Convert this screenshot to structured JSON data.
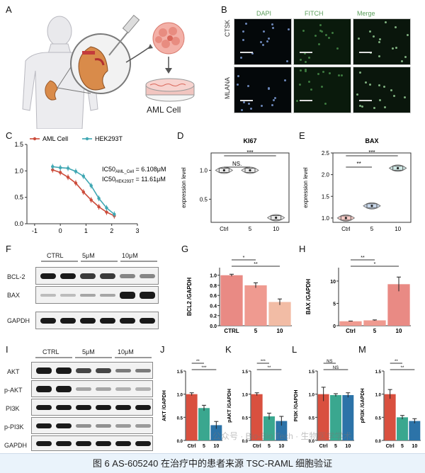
{
  "panels": {
    "A": "A",
    "B": "B",
    "C": "C",
    "D": "D",
    "E": "E",
    "F": "F",
    "G": "G",
    "H": "H",
    "I": "I",
    "J": "J",
    "K": "K",
    "L": "L",
    "M": "M"
  },
  "panelA": {
    "cell_label": "AML Cell"
  },
  "panelB": {
    "col_headers": [
      "DAPI",
      "FITCH",
      "Merge"
    ],
    "row_labels": [
      "CTSK",
      "MLANA"
    ]
  },
  "panelC": {
    "legend": [
      "AML Cell",
      "HEK293T"
    ],
    "ic50_aml_prefix": "IC50",
    "ic50_aml_sub": "AML_Cell",
    "ic50_aml_value": "= 6.108μM",
    "ic50_hek_prefix": "IC50",
    "ic50_hek_sub": "HEK293T",
    "ic50_hek_value": "= 11.61μM",
    "colors": {
      "aml": "#cc4c3b",
      "hek": "#3fa7b3"
    }
  },
  "panelF": {
    "conditions": [
      "CTRL",
      "5μM",
      "10μM"
    ],
    "rows": [
      "BCL-2",
      "BAX",
      "GAPDH"
    ]
  },
  "panelI": {
    "conditions": [
      "CTRL",
      "5μM",
      "10μM"
    ],
    "rows": [
      "AKT",
      "p-AKT",
      "PI3K",
      "p-PI3K",
      "GAPDH"
    ]
  },
  "caption": "图 6 AS-605240 在治疗中的患者来源 TSC-RAML 细胞验证",
  "watermark": "公众号 · Bio-Bio Tech · 生物医学学术",
  "chart_data": [
    {
      "id": "C",
      "type": "line",
      "xlabel": "",
      "ylabel": "",
      "xticks": [
        "-1",
        "0",
        "1",
        "2",
        "3"
      ],
      "yticks": [
        "0.0",
        "0.5",
        "1.0",
        "1.5"
      ],
      "xlim": [
        -1.3,
        3
      ],
      "ylim": [
        0,
        1.5
      ],
      "series": [
        {
          "name": "AML Cell",
          "x": [
            -0.3,
            0,
            0.3,
            0.6,
            0.9,
            1.2,
            1.5,
            1.8,
            2.1
          ],
          "y": [
            1.02,
            0.97,
            0.88,
            0.77,
            0.6,
            0.45,
            0.32,
            0.22,
            0.15
          ]
        },
        {
          "name": "HEK293T",
          "x": [
            -0.3,
            0,
            0.3,
            0.6,
            0.9,
            1.2,
            1.5,
            1.8,
            2.1
          ],
          "y": [
            1.08,
            1.06,
            1.05,
            0.99,
            0.9,
            0.72,
            0.48,
            0.3,
            0.18
          ]
        }
      ]
    },
    {
      "id": "D",
      "type": "violin",
      "title": "KI67",
      "ylabel": "expression level",
      "categories": [
        "Ctrl",
        "5",
        "10"
      ],
      "values": [
        1.0,
        1.0,
        0.18
      ],
      "yticks": [
        "0.5",
        "1.0"
      ],
      "ylim": [
        0.1,
        1.3
      ],
      "significance": [
        {
          "pair": [
            "Ctrl",
            "5"
          ],
          "label": "NS."
        },
        {
          "pair": [
            "Ctrl",
            "10"
          ],
          "label": "***"
        }
      ]
    },
    {
      "id": "E",
      "type": "violin",
      "title": "BAX",
      "ylabel": "expression level",
      "categories": [
        "Ctrl",
        "5",
        "10"
      ],
      "values": [
        1.0,
        1.28,
        2.15
      ],
      "yticks": [
        "1.0",
        "1.5",
        "2.0",
        "2.5"
      ],
      "ylim": [
        0.9,
        2.5
      ],
      "significance": [
        {
          "pair": [
            "Ctrl",
            "5"
          ],
          "label": "**"
        },
        {
          "pair": [
            "Ctrl",
            "10"
          ],
          "label": "***"
        }
      ]
    },
    {
      "id": "G",
      "type": "bar",
      "ylabel": "BCL2 /GAPDH",
      "categories": [
        "CTRL",
        "5",
        "10"
      ],
      "values": [
        1.0,
        0.8,
        0.47
      ],
      "errors": [
        0.02,
        0.05,
        0.06
      ],
      "colors": [
        "#e98a84",
        "#ef9a90",
        "#f2bca5"
      ],
      "yticks": [
        "0.0",
        "0.2",
        "0.4",
        "0.6",
        "0.8",
        "1.0"
      ],
      "ylim": [
        0,
        1.15
      ],
      "significance": [
        {
          "pair": [
            "CTRL",
            "5"
          ],
          "label": "*"
        },
        {
          "pair": [
            "CTRL",
            "10"
          ],
          "label": "**"
        }
      ]
    },
    {
      "id": "H",
      "type": "bar",
      "ylabel": "BAX /GAPDH",
      "categories": [
        "Ctrl",
        "5",
        "10"
      ],
      "values": [
        1.0,
        1.2,
        9.3
      ],
      "errors": [
        0.05,
        0.1,
        1.6
      ],
      "colors": [
        "#ef9a90",
        "#ef9a90",
        "#e98a84"
      ],
      "yticks": [
        "0",
        "5",
        "10"
      ],
      "ylim": [
        0,
        13
      ],
      "significance": [
        {
          "pair": [
            "Ctrl",
            "5"
          ],
          "label": "**"
        },
        {
          "pair": [
            "Ctrl",
            "10"
          ],
          "label": "*"
        }
      ]
    },
    {
      "id": "J",
      "type": "bar",
      "ylabel": "AKT /GAPDH",
      "categories": [
        "Ctrl",
        "5",
        "10"
      ],
      "values": [
        1.0,
        0.7,
        0.33
      ],
      "errors": [
        0.03,
        0.06,
        0.08
      ],
      "colors": [
        "#d9503f",
        "#3aa78f",
        "#2c73a8"
      ],
      "yticks": [
        "0.0",
        "0.5",
        "1.0",
        "1.5"
      ],
      "ylim": [
        0,
        1.5
      ],
      "significance": [
        {
          "pair": [
            "Ctrl",
            "5"
          ],
          "label": "**"
        },
        {
          "pair": [
            "Ctrl",
            "10"
          ],
          "label": "***"
        }
      ]
    },
    {
      "id": "K",
      "type": "bar",
      "ylabel": "pAKT /GAPDH",
      "categories": [
        "Ctrl",
        "5",
        "10"
      ],
      "values": [
        1.0,
        0.52,
        0.42
      ],
      "errors": [
        0.03,
        0.07,
        0.1
      ],
      "colors": [
        "#d9503f",
        "#3aa78f",
        "#2c73a8"
      ],
      "yticks": [
        "0.0",
        "0.5",
        "1.0",
        "1.5"
      ],
      "ylim": [
        0,
        1.5
      ],
      "significance": [
        {
          "pair": [
            "Ctrl",
            "5"
          ],
          "label": "***"
        },
        {
          "pair": [
            "Ctrl",
            "10"
          ],
          "label": "**"
        }
      ]
    },
    {
      "id": "L",
      "type": "bar",
      "ylabel": "PI3K /GAPDH",
      "categories": [
        "Ctrl",
        "5",
        "10"
      ],
      "values": [
        1.0,
        0.98,
        0.98
      ],
      "errors": [
        0.15,
        0.03,
        0.05
      ],
      "colors": [
        "#d9503f",
        "#3aa78f",
        "#2c73a8"
      ],
      "yticks": [
        "0.0",
        "0.5",
        "1.0",
        "1.5"
      ],
      "ylim": [
        0,
        1.5
      ],
      "significance": [
        {
          "pair": [
            "Ctrl",
            "5"
          ],
          "label": "NS"
        },
        {
          "pair": [
            "Ctrl",
            "10"
          ],
          "label": "NS"
        }
      ]
    },
    {
      "id": "M",
      "type": "bar",
      "ylabel": "pPI3K /GAPDH",
      "categories": [
        "Ctrl",
        "5",
        "10"
      ],
      "values": [
        1.0,
        0.5,
        0.42
      ],
      "errors": [
        0.1,
        0.04,
        0.05
      ],
      "colors": [
        "#d9503f",
        "#3aa78f",
        "#2c73a8"
      ],
      "yticks": [
        "0.0",
        "0.5",
        "1.0",
        "1.5"
      ],
      "ylim": [
        0,
        1.5
      ],
      "significance": [
        {
          "pair": [
            "Ctrl",
            "5"
          ],
          "label": "**"
        },
        {
          "pair": [
            "Ctrl",
            "10"
          ],
          "label": "**"
        }
      ]
    }
  ]
}
